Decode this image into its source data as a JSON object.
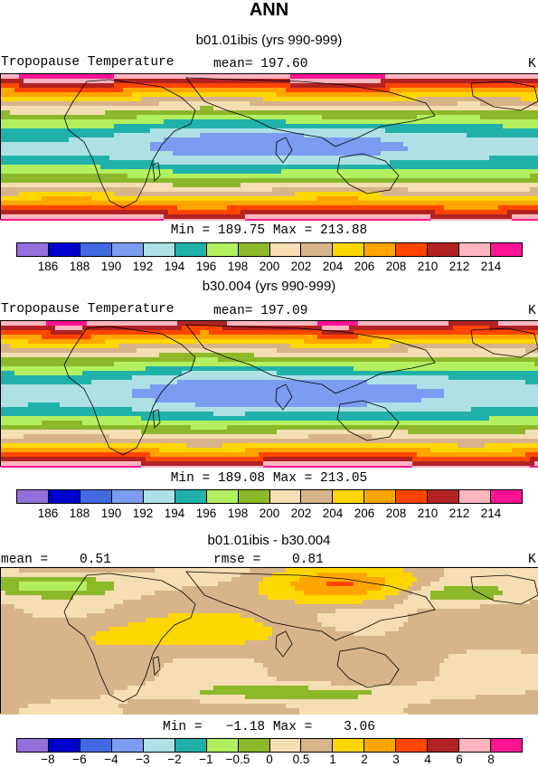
{
  "title": "ANN",
  "colors": {
    "abs": [
      "#9370db",
      "#0000cd",
      "#4169e1",
      "#7b9cf0",
      "#aee0e6",
      "#20b2aa",
      "#b3f060",
      "#8db82a",
      "#f5deb3",
      "#d8b48a",
      "#ffd700",
      "#ffa500",
      "#ff4500",
      "#b22222",
      "#ffb6c1",
      "#ff1493"
    ],
    "diff": [
      "#9370db",
      "#0000cd",
      "#4169e1",
      "#7b9cf0",
      "#aee0e6",
      "#20b2aa",
      "#b3f060",
      "#8db82a",
      "#f5deb3",
      "#d8b48a",
      "#ffd700",
      "#ffa500",
      "#ff4500",
      "#b22222",
      "#ffb6c1",
      "#ff1493"
    ]
  },
  "panels": [
    {
      "case_title": "b01.01ibis (yrs 990-999)",
      "left_label": "Tropopause Temperature",
      "center_label": "mean= 197.60",
      "right_label": "K",
      "minmax": "Min = 189.75 Max = 213.88"
    },
    {
      "case_title": "b30.004 (yrs 990-999)",
      "left_label": "Tropopause Temperature",
      "center_label": "mean= 197.09",
      "right_label": "K",
      "minmax": "Min = 189.08 Max = 213.05"
    },
    {
      "case_title": "b01.01ibis - b30.004",
      "left_label": "mean =    0.51",
      "center_label": "rmse =    0.81",
      "right_label": "K",
      "minmax": "Min =   −1.18 Max =    3.06"
    }
  ],
  "chart_data": [
    {
      "type": "heatmap",
      "title": "b01.01ibis (yrs 990-999)",
      "variable": "Tropopause Temperature",
      "units": "K",
      "mean": 197.6,
      "min": 189.75,
      "max": 213.88,
      "levels": [
        "186",
        "188",
        "190",
        "192",
        "194",
        "196",
        "198",
        "200",
        "202",
        "204",
        "206",
        "208",
        "210",
        "212",
        "214"
      ]
    },
    {
      "type": "heatmap",
      "title": "b30.004 (yrs 990-999)",
      "variable": "Tropopause Temperature",
      "units": "K",
      "mean": 197.09,
      "min": 189.08,
      "max": 213.05,
      "levels": [
        "186",
        "188",
        "190",
        "192",
        "194",
        "196",
        "198",
        "200",
        "202",
        "204",
        "206",
        "208",
        "210",
        "212",
        "214"
      ]
    },
    {
      "type": "heatmap",
      "title": "b01.01ibis - b30.004",
      "units": "K",
      "mean": 0.51,
      "rmse": 0.81,
      "min": -1.18,
      "max": 3.06,
      "levels": [
        "−8",
        "−6",
        "−4",
        "−3",
        "−2",
        "−1",
        "−0.5",
        "0",
        "0.5",
        "1",
        "2",
        "3",
        "4",
        "6",
        "8"
      ]
    }
  ]
}
